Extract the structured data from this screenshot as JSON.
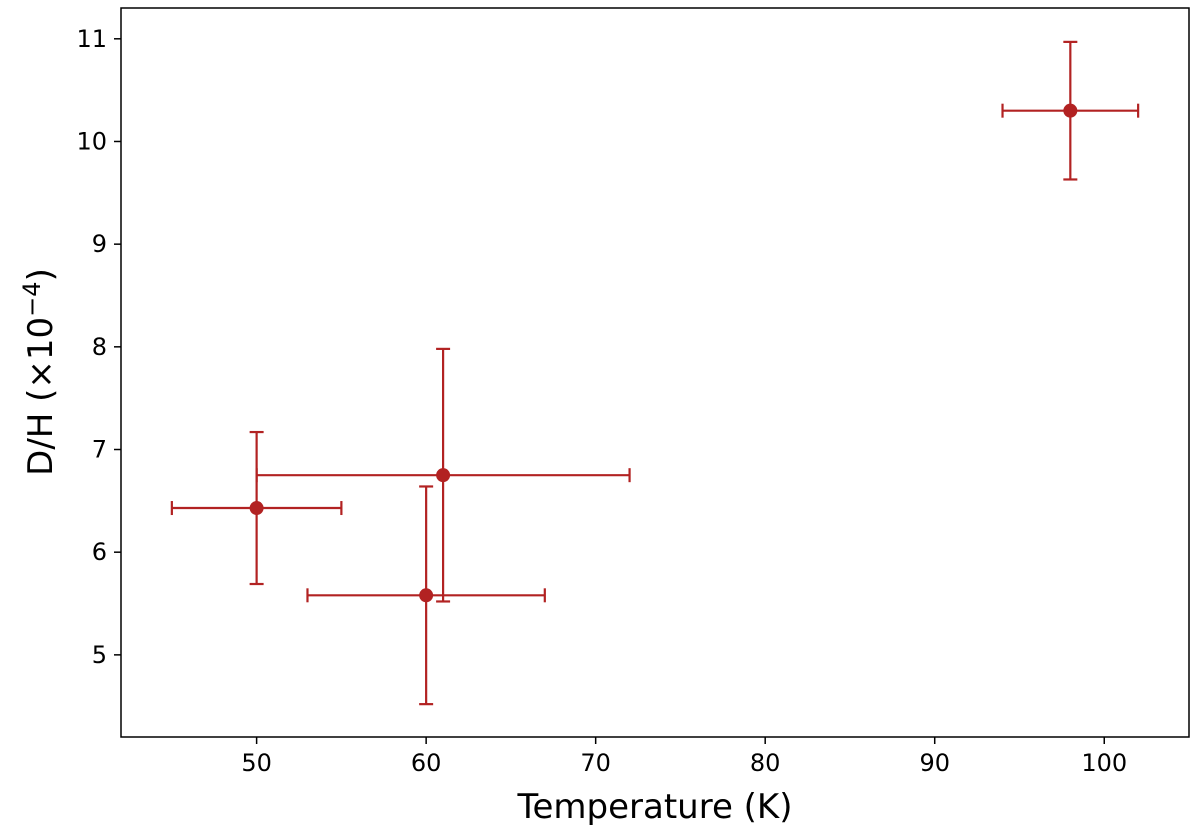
{
  "chart_data": {
    "type": "scatter",
    "xlabel": "Temperature (K)",
    "ylabel_main": "D/H (×10",
    "ylabel_exp": "−4",
    "ylabel_close": ")",
    "xlim": [
      42,
      105
    ],
    "ylim": [
      4.2,
      11.3
    ],
    "xticks": [
      50,
      60,
      70,
      80,
      90,
      100
    ],
    "yticks": [
      5,
      6,
      7,
      8,
      9,
      10,
      11
    ],
    "grid": false,
    "legend": "none",
    "color": "#b22222",
    "points": [
      {
        "x": 50,
        "y": 6.43,
        "xerr": 5,
        "yerr": 0.74
      },
      {
        "x": 61,
        "y": 6.75,
        "xerr": 11,
        "yerr": 1.23
      },
      {
        "x": 60,
        "y": 5.58,
        "xerr": 7,
        "yerr_low": 1.06,
        "yerr_high": 1.06
      },
      {
        "x": 98,
        "y": 10.3,
        "xerr": 4,
        "yerr": 0.67
      }
    ]
  }
}
